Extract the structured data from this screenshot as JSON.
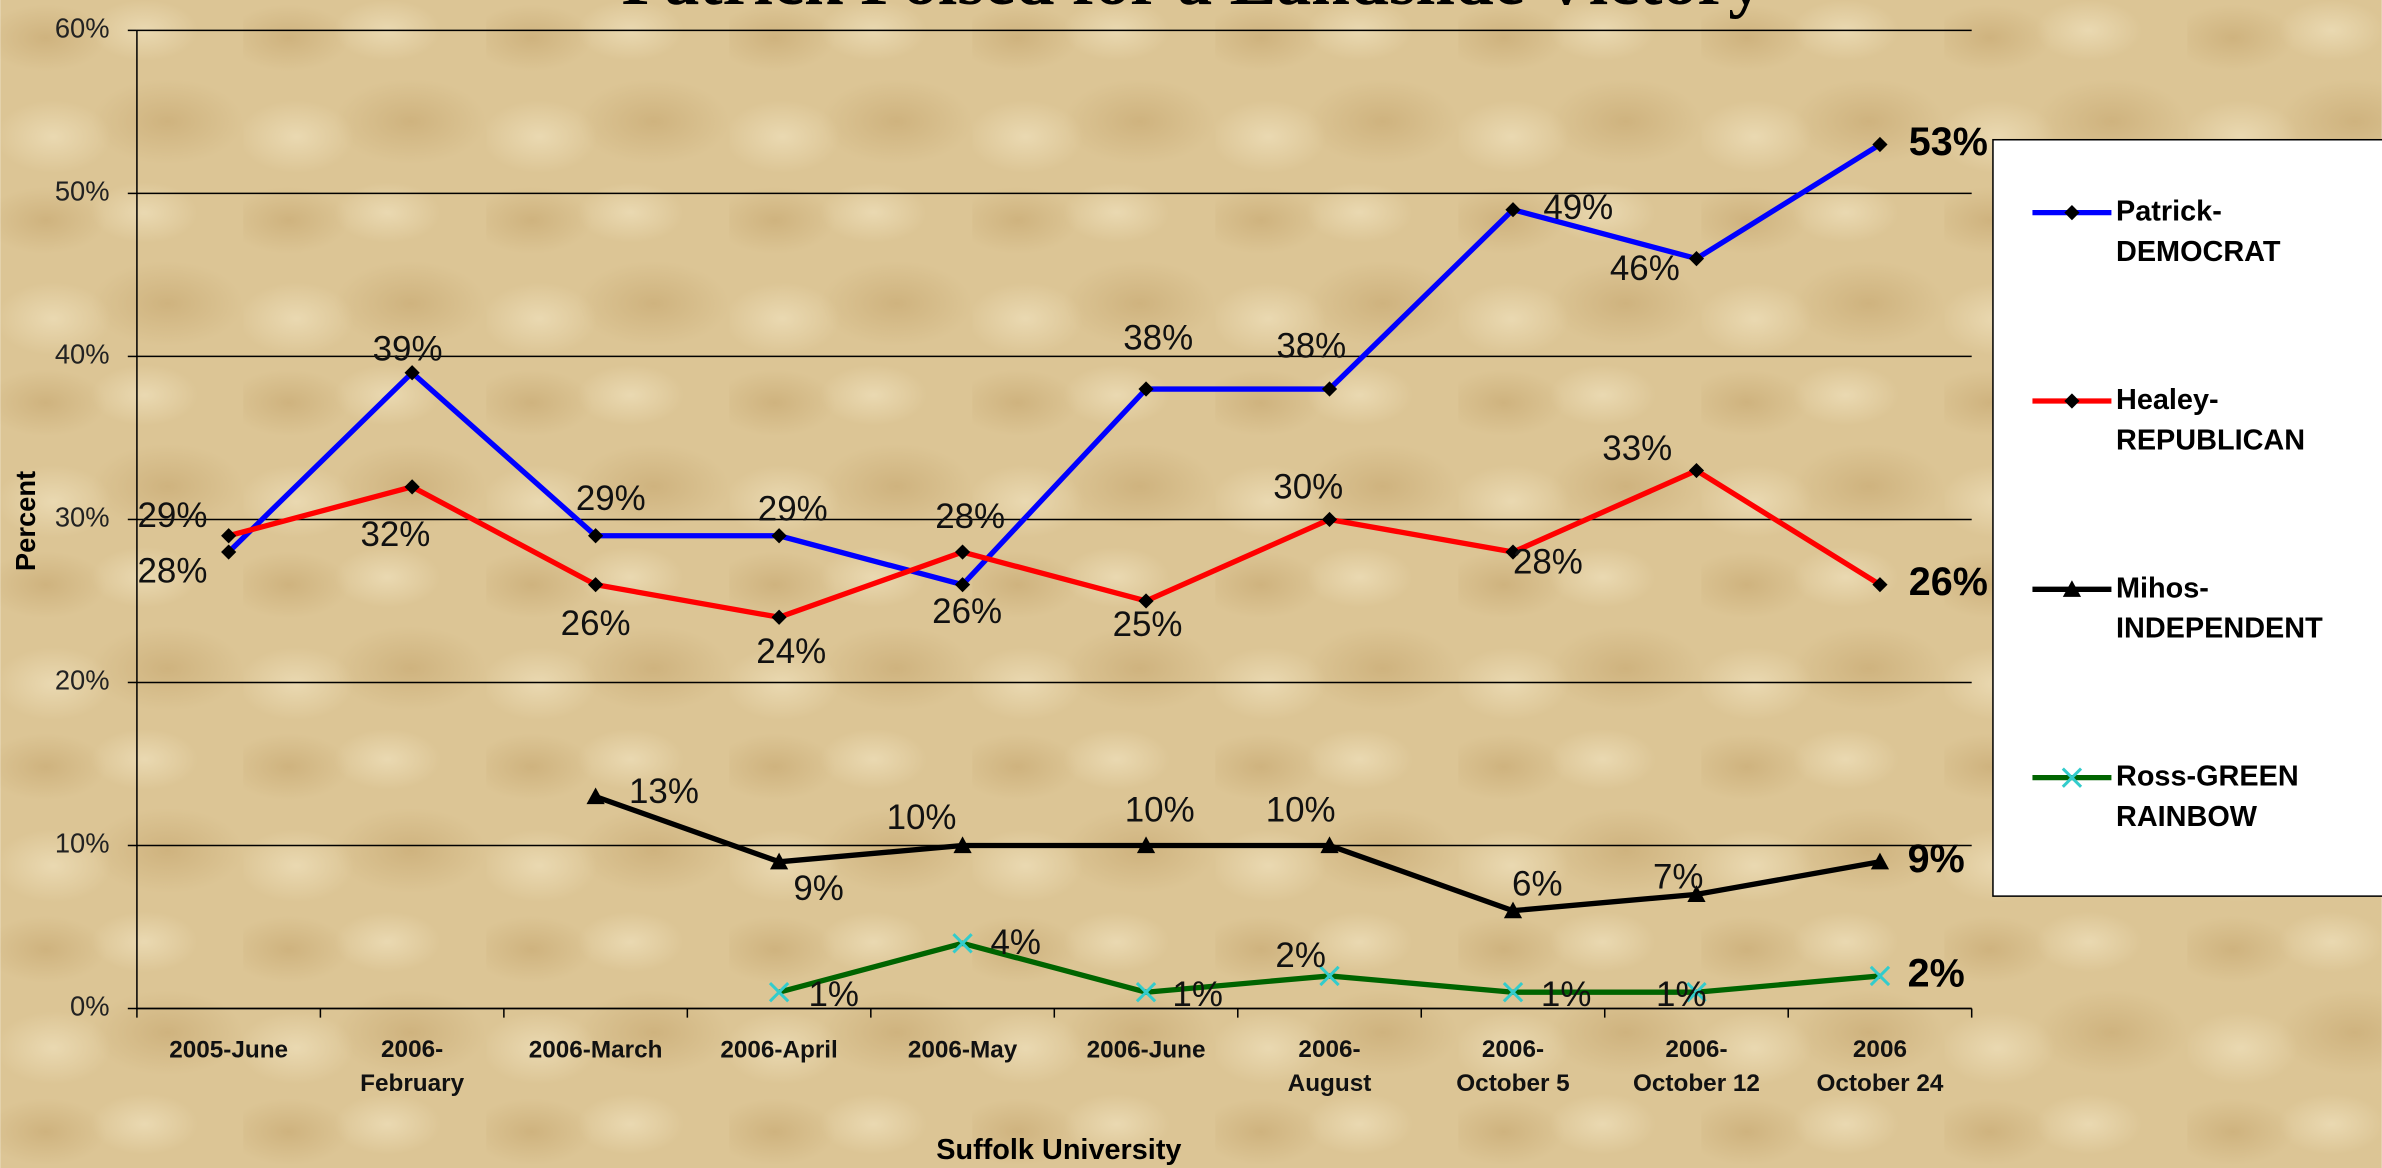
{
  "chart_data": {
    "type": "line",
    "title": "Patrick Poised for a Landslide Victory",
    "y_label": "Percent",
    "x_label": "Suffolk University",
    "categories": [
      "2005-June",
      "2006-\nFebruary",
      "2006-March",
      "2006-April",
      "2006-May",
      "2006-June",
      "2006-\nAugust",
      "2006-\nOctober 5",
      "2006-\nOctober 12",
      "2006\nOctober 24"
    ],
    "ylim": [
      0,
      60
    ],
    "yticks": [
      {
        "value": 0,
        "label": "0%"
      },
      {
        "value": 10,
        "label": "10%"
      },
      {
        "value": 20,
        "label": "20%"
      },
      {
        "value": 30,
        "label": "30%"
      },
      {
        "value": 40,
        "label": "40%"
      },
      {
        "value": 50,
        "label": "50%"
      },
      {
        "value": 60,
        "label": "60%"
      }
    ],
    "grid": true,
    "legend": "right",
    "series": [
      {
        "name": "Patrick-\nDEMOCRAT",
        "color": "#0000ff",
        "marker": "diamond",
        "marker_color": "#000000",
        "values": [
          28,
          39,
          29,
          29,
          26,
          38,
          38,
          49,
          46,
          53
        ],
        "value_labels": [
          "28%",
          "39%",
          "29%",
          "29%",
          "26%",
          "38%",
          "38%",
          "49%",
          "46%",
          "53%"
        ]
      },
      {
        "name": "Healey-\nREPUBLICAN",
        "color": "#ff0000",
        "marker": "diamond",
        "marker_color": "#000000",
        "values": [
          29,
          32,
          26,
          24,
          28,
          25,
          30,
          28,
          33,
          26
        ],
        "value_labels": [
          "29%",
          "32%",
          "26%",
          "24%",
          "28%",
          "25%",
          "30%",
          "28%",
          "33%",
          "26%"
        ]
      },
      {
        "name": "Mihos-\nINDEPENDENT",
        "color": "#000000",
        "marker": "triangle",
        "marker_color": "#000000",
        "values": [
          null,
          null,
          13,
          9,
          10,
          10,
          10,
          6,
          7,
          9
        ],
        "value_labels": [
          null,
          null,
          "13%",
          "9%",
          "10%",
          "10%",
          "10%",
          "6%",
          "7%",
          "9%"
        ]
      },
      {
        "name": "Ross-GREEN\nRAINBOW",
        "color": "#006400",
        "marker": "x",
        "marker_color": "#33cccc",
        "values": [
          null,
          null,
          null,
          1,
          4,
          1,
          2,
          1,
          1,
          2
        ],
        "value_labels": [
          null,
          null,
          null,
          "1%",
          "4%",
          "1%",
          "2%",
          "1%",
          "1%",
          "2%"
        ]
      }
    ]
  }
}
